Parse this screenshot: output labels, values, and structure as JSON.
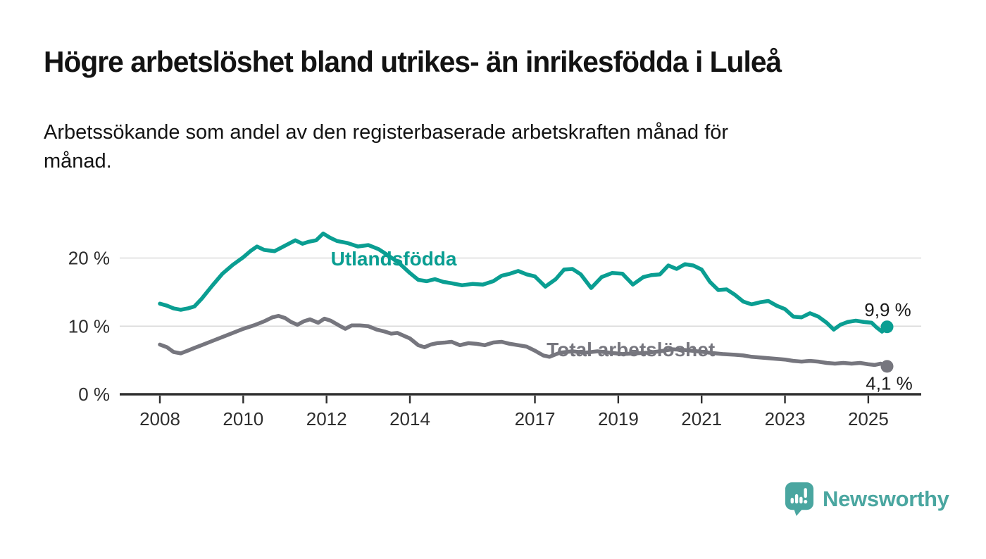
{
  "page": {
    "title": "Högre arbetslöshet bland utrikes- än inrikesfödda i Luleå",
    "subtitle_line1": "Arbetssökande som andel av den registerbaserade arbetskraften månad för",
    "subtitle_line2": "månad."
  },
  "branding": {
    "logo_text": "Newsworthy",
    "logo_icon": "bar-chart-speech-bubble-icon",
    "logo_color": "#4aa6a0"
  },
  "chart_data": {
    "type": "line",
    "title": "Högre arbetslöshet bland utrikes- än inrikesfödda i Luleå",
    "subtitle": "Arbetssökande som andel av den registerbaserade arbetskraften månad för månad.",
    "unit": "%",
    "grid": "horizontal-only",
    "legend_position": "inline-series-labels",
    "x_axis": {
      "range": [
        2007.0,
        2026.3
      ],
      "ticks": [
        {
          "year": 2008,
          "label": "2008"
        },
        {
          "year": 2010,
          "label": "2010"
        },
        {
          "year": 2012,
          "label": "2012"
        },
        {
          "year": 2014,
          "label": "2014"
        },
        {
          "year": 2017,
          "label": "2017"
        },
        {
          "year": 2019,
          "label": "2019"
        },
        {
          "year": 2021,
          "label": "2021"
        },
        {
          "year": 2023,
          "label": "2023"
        },
        {
          "year": 2025,
          "label": "2025"
        }
      ]
    },
    "y_axis": {
      "range": [
        0,
        26
      ],
      "gridlines": [
        10,
        20
      ],
      "ticks": [
        {
          "value": 0,
          "label": "0 %"
        },
        {
          "value": 10,
          "label": "10 %"
        },
        {
          "value": 20,
          "label": "20 %"
        }
      ]
    },
    "series": [
      {
        "id": "total-arbetsloshet",
        "name": "Total arbetslöshet",
        "color": "#76767e",
        "end_label": "4,1 %",
        "end_value": 4.1,
        "label_anchor": {
          "year": 2017.28,
          "value": 5.6
        },
        "points": [
          [
            2008.0,
            7.3
          ],
          [
            2008.17,
            6.9
          ],
          [
            2008.33,
            6.2
          ],
          [
            2008.5,
            6.0
          ],
          [
            2008.67,
            6.4
          ],
          [
            2008.83,
            6.8
          ],
          [
            2009.0,
            7.2
          ],
          [
            2009.25,
            7.8
          ],
          [
            2009.5,
            8.4
          ],
          [
            2009.75,
            9.0
          ],
          [
            2010.0,
            9.6
          ],
          [
            2010.25,
            10.1
          ],
          [
            2010.5,
            10.7
          ],
          [
            2010.7,
            11.3
          ],
          [
            2010.85,
            11.5
          ],
          [
            2011.0,
            11.2
          ],
          [
            2011.15,
            10.6
          ],
          [
            2011.3,
            10.2
          ],
          [
            2011.45,
            10.7
          ],
          [
            2011.6,
            11.0
          ],
          [
            2011.8,
            10.5
          ],
          [
            2011.95,
            11.1
          ],
          [
            2012.1,
            10.8
          ],
          [
            2012.3,
            10.1
          ],
          [
            2012.45,
            9.6
          ],
          [
            2012.6,
            10.1
          ],
          [
            2012.8,
            10.1
          ],
          [
            2013.0,
            10.0
          ],
          [
            2013.2,
            9.5
          ],
          [
            2013.4,
            9.2
          ],
          [
            2013.55,
            8.9
          ],
          [
            2013.7,
            9.0
          ],
          [
            2013.85,
            8.6
          ],
          [
            2014.0,
            8.2
          ],
          [
            2014.2,
            7.2
          ],
          [
            2014.35,
            6.9
          ],
          [
            2014.5,
            7.3
          ],
          [
            2014.65,
            7.5
          ],
          [
            2014.85,
            7.6
          ],
          [
            2015.0,
            7.7
          ],
          [
            2015.2,
            7.2
          ],
          [
            2015.4,
            7.5
          ],
          [
            2015.6,
            7.4
          ],
          [
            2015.8,
            7.2
          ],
          [
            2016.0,
            7.6
          ],
          [
            2016.2,
            7.7
          ],
          [
            2016.4,
            7.4
          ],
          [
            2016.6,
            7.2
          ],
          [
            2016.8,
            7.0
          ],
          [
            2017.0,
            6.4
          ],
          [
            2017.2,
            5.7
          ],
          [
            2017.35,
            5.5
          ],
          [
            2017.6,
            6.1
          ],
          [
            2017.9,
            6.3
          ],
          [
            2018.2,
            6.1
          ],
          [
            2018.5,
            6.3
          ],
          [
            2018.8,
            6.1
          ],
          [
            2019.1,
            5.9
          ],
          [
            2019.4,
            6.0
          ],
          [
            2019.7,
            6.1
          ],
          [
            2020.0,
            6.3
          ],
          [
            2020.3,
            6.6
          ],
          [
            2020.6,
            6.5
          ],
          [
            2020.9,
            6.3
          ],
          [
            2021.2,
            6.1
          ],
          [
            2021.5,
            5.9
          ],
          [
            2021.8,
            5.8
          ],
          [
            2022.0,
            5.7
          ],
          [
            2022.2,
            5.5
          ],
          [
            2022.4,
            5.4
          ],
          [
            2022.6,
            5.3
          ],
          [
            2022.8,
            5.2
          ],
          [
            2023.0,
            5.1
          ],
          [
            2023.2,
            4.9
          ],
          [
            2023.4,
            4.8
          ],
          [
            2023.6,
            4.9
          ],
          [
            2023.8,
            4.8
          ],
          [
            2024.0,
            4.6
          ],
          [
            2024.2,
            4.5
          ],
          [
            2024.4,
            4.6
          ],
          [
            2024.6,
            4.5
          ],
          [
            2024.8,
            4.6
          ],
          [
            2025.0,
            4.4
          ],
          [
            2025.15,
            4.3
          ],
          [
            2025.3,
            4.5
          ],
          [
            2025.45,
            4.1
          ]
        ]
      },
      {
        "id": "utlandsfodda",
        "name": "Utlandsfödda",
        "color": "#0a9e92",
        "end_label": "9,9 %",
        "end_value": 9.9,
        "label_anchor": {
          "year": 2012.1,
          "value": 18.9
        },
        "points": [
          [
            2008.0,
            13.3
          ],
          [
            2008.17,
            13.0
          ],
          [
            2008.33,
            12.6
          ],
          [
            2008.5,
            12.4
          ],
          [
            2008.67,
            12.6
          ],
          [
            2008.83,
            12.9
          ],
          [
            2009.0,
            14.0
          ],
          [
            2009.25,
            15.9
          ],
          [
            2009.5,
            17.7
          ],
          [
            2009.75,
            19.0
          ],
          [
            2010.0,
            20.1
          ],
          [
            2010.17,
            21.0
          ],
          [
            2010.33,
            21.7
          ],
          [
            2010.5,
            21.2
          ],
          [
            2010.75,
            21.0
          ],
          [
            2011.0,
            21.8
          ],
          [
            2011.25,
            22.6
          ],
          [
            2011.42,
            22.1
          ],
          [
            2011.58,
            22.4
          ],
          [
            2011.75,
            22.6
          ],
          [
            2011.92,
            23.6
          ],
          [
            2012.08,
            23.0
          ],
          [
            2012.25,
            22.5
          ],
          [
            2012.5,
            22.2
          ],
          [
            2012.75,
            21.7
          ],
          [
            2013.0,
            21.9
          ],
          [
            2013.25,
            21.3
          ],
          [
            2013.5,
            20.3
          ],
          [
            2013.75,
            19.2
          ],
          [
            2014.0,
            17.8
          ],
          [
            2014.2,
            16.8
          ],
          [
            2014.4,
            16.6
          ],
          [
            2014.6,
            16.9
          ],
          [
            2014.8,
            16.5
          ],
          [
            2015.0,
            16.3
          ],
          [
            2015.25,
            16.0
          ],
          [
            2015.5,
            16.2
          ],
          [
            2015.75,
            16.1
          ],
          [
            2016.0,
            16.6
          ],
          [
            2016.2,
            17.4
          ],
          [
            2016.4,
            17.7
          ],
          [
            2016.6,
            18.1
          ],
          [
            2016.8,
            17.6
          ],
          [
            2017.0,
            17.3
          ],
          [
            2017.25,
            15.8
          ],
          [
            2017.5,
            16.9
          ],
          [
            2017.7,
            18.3
          ],
          [
            2017.9,
            18.4
          ],
          [
            2018.1,
            17.6
          ],
          [
            2018.35,
            15.6
          ],
          [
            2018.6,
            17.2
          ],
          [
            2018.85,
            17.8
          ],
          [
            2019.1,
            17.7
          ],
          [
            2019.35,
            16.1
          ],
          [
            2019.6,
            17.2
          ],
          [
            2019.8,
            17.5
          ],
          [
            2020.0,
            17.6
          ],
          [
            2020.2,
            18.9
          ],
          [
            2020.4,
            18.4
          ],
          [
            2020.6,
            19.1
          ],
          [
            2020.8,
            18.9
          ],
          [
            2021.0,
            18.3
          ],
          [
            2021.2,
            16.5
          ],
          [
            2021.4,
            15.3
          ],
          [
            2021.6,
            15.4
          ],
          [
            2021.8,
            14.6
          ],
          [
            2022.0,
            13.6
          ],
          [
            2022.2,
            13.2
          ],
          [
            2022.4,
            13.5
          ],
          [
            2022.6,
            13.7
          ],
          [
            2022.8,
            13.0
          ],
          [
            2023.0,
            12.5
          ],
          [
            2023.2,
            11.4
          ],
          [
            2023.4,
            11.3
          ],
          [
            2023.6,
            11.9
          ],
          [
            2023.8,
            11.4
          ],
          [
            2024.0,
            10.5
          ],
          [
            2024.17,
            9.5
          ],
          [
            2024.33,
            10.2
          ],
          [
            2024.5,
            10.6
          ],
          [
            2024.7,
            10.8
          ],
          [
            2024.9,
            10.6
          ],
          [
            2025.08,
            10.5
          ],
          [
            2025.2,
            9.8
          ],
          [
            2025.33,
            9.2
          ],
          [
            2025.45,
            9.9
          ]
        ]
      }
    ]
  }
}
